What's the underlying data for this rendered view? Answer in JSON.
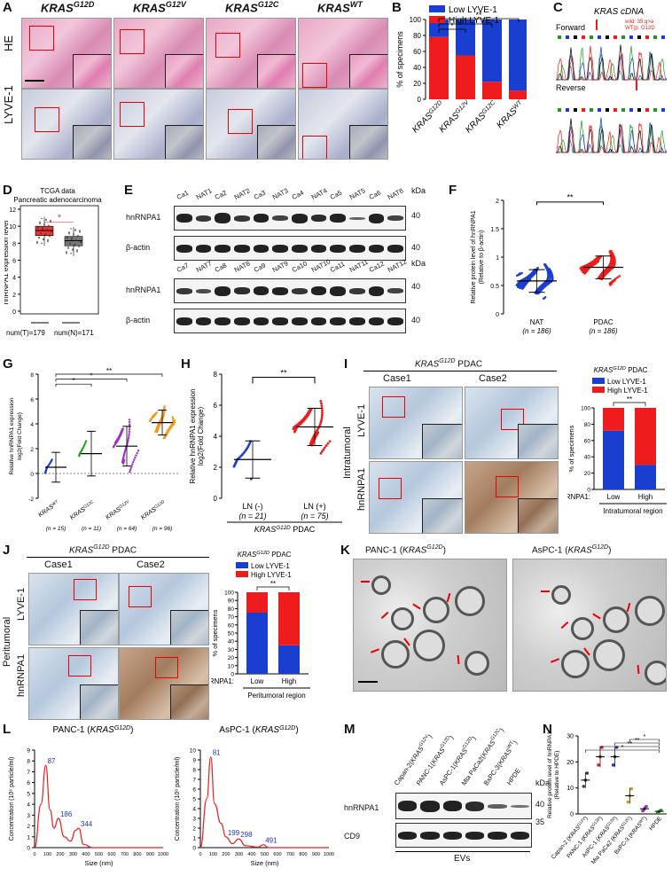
{
  "panels": {
    "A": {
      "letter": "A",
      "cols": [
        "KRAS",
        "KRAS",
        "KRAS",
        "KRAS"
      ],
      "sups": [
        "G12D",
        "G12V",
        "G12C",
        "WT"
      ],
      "rows": [
        "HE",
        "LYVE-1"
      ]
    },
    "B": {
      "letter": "B",
      "legend": [
        "Low LYVE-1",
        "High LYVE-1"
      ],
      "ylabel": "% of specimens",
      "sig": [
        "*",
        "*",
        "**",
        "**"
      ]
    },
    "C": {
      "letter": "C",
      "title": "KRAS cDNA",
      "forward": "Forward",
      "reverse": "Reverse",
      "note1": "wild: 35 g>a",
      "note2": "WT(p. G12D"
    },
    "D": {
      "letter": "D",
      "title1": "TCGA data",
      "title2": "Pancreatic adenocarcinoma",
      "ylabel": "hnRNPA1 expression level",
      "nT": "num(T)=179",
      "nN": "num(N)=171",
      "sig": "*"
    },
    "E": {
      "letter": "E",
      "lanes1": [
        "Ca1",
        "NAT1",
        "Ca2",
        "NAT2",
        "Ca3",
        "NAT3",
        "Ca4",
        "NAT4",
        "Ca5",
        "NAT5",
        "Ca6",
        "NAT6"
      ],
      "lanes2": [
        "Ca7",
        "NAT7",
        "Ca8",
        "NAT8",
        "Ca9",
        "NAT9",
        "Ca10",
        "NAT10",
        "Ca11",
        "NAT11",
        "Ca12",
        "NAT12"
      ],
      "row1": "hnRNPA1",
      "row2": "β-actin",
      "kda": "kDa",
      "m40": "40"
    },
    "F": {
      "letter": "F",
      "ylabel": "Relative protein level of hnRNPA1",
      "ylabel2": "(Relative to β-actin)",
      "groups": [
        "NAT",
        "PDAC"
      ],
      "n": [
        "(n = 186)",
        "(n = 186)"
      ],
      "sig": "**"
    },
    "G": {
      "letter": "G",
      "ylabel": "Relative hnRNPA1 expression",
      "ylabel2": "log2(Fold Change)",
      "groups": [
        "KRASWT",
        "KRASG12C",
        "KRASG12V",
        "KRASG12D"
      ],
      "n": [
        "(n = 15)",
        "(n = 11)",
        "(n = 64)",
        "(n = 96)"
      ],
      "sig": [
        "*",
        "*",
        "**"
      ]
    },
    "H": {
      "letter": "H",
      "ylabel": "Relative hnRNPA1 expression",
      "ylabel2": "log2(Fold Change)",
      "groups": [
        "LN (-)",
        "LN (+)"
      ],
      "n": [
        "(n = 21)",
        "(n = 75)"
      ],
      "footer": "KRASG12D PDAC",
      "sig": "**"
    },
    "I": {
      "letter": "I",
      "header": "KRASG12D PDAC",
      "case1": "Case1",
      "case2": "Case2",
      "region": "Intratumoral",
      "rows": [
        "LYVE-1",
        "hnRNPA1"
      ],
      "chartTitle": "KRASG12D PDAC",
      "legend": [
        "Low LYVE-1",
        "High LYVE-1"
      ],
      "ylabel": "% of specimens",
      "xlab": "hnRNPA1:",
      "cats": [
        "Low",
        "High"
      ],
      "regionLabel": "Intratumoral region",
      "sig": "**"
    },
    "J": {
      "letter": "J",
      "header": "KRASG12D PDAC",
      "case1": "Case1",
      "case2": "Case2",
      "region": "Peritumoral",
      "rows": [
        "LYVE-1",
        "hnRNPA1"
      ],
      "chartTitle": "KRASG12D PDAC",
      "legend": [
        "Low LYVE-1",
        "High LYVE-1"
      ],
      "ylabel": "% of specimens",
      "xlab": "hnRNPA1:",
      "cats": [
        "Low",
        "High"
      ],
      "regionLabel": "Peritumoral region",
      "sig": "**"
    },
    "K": {
      "letter": "K",
      "t1": "PANC-1 (KRASG12D)",
      "t2": "AsPC-1 (KRASG12D)"
    },
    "L": {
      "letter": "L",
      "t1": "PANC-1 (KRASG12D)",
      "t2": "AsPC-1 (KRASG12D)",
      "xlabel": "Size (nm)",
      "ylabel": "Concentration (10⁶ particle/ml)",
      "peaks1": [
        "87",
        "186",
        "344"
      ],
      "peaks2": [
        "81",
        "199",
        "298",
        "491"
      ]
    },
    "M": {
      "letter": "M",
      "lanes": [
        "Capan-2(KRASG12V)",
        "PANC-1(KRASG12D)",
        "AsPC-1(KRASG12D)",
        "Mia PaCa2(KRASG12C)",
        "BxPC-3(KRASWT)",
        "HPDE"
      ],
      "row1": "hnRNPA1",
      "row2": "CD9",
      "kda": "kDa",
      "m40": "40",
      "m35": "35",
      "footer": "EVs"
    },
    "N": {
      "letter": "N",
      "ylabel": "Relative protein level of hnRNPA1",
      "ylabel2": "(Relative to HPDE)",
      "cats": [
        "Capan-2 (KRASG12V)",
        "PANC-1 (KRASG12D)",
        "AsPC-1 (KRASG12D)",
        "Mia PaCa2 (KRASG12C)",
        "BxPC-3 (KRASWT)",
        "HPDE"
      ],
      "sig": [
        "*",
        "**",
        "**",
        "*"
      ]
    }
  },
  "chart_data": [
    {
      "id": "B",
      "type": "bar",
      "stacked": true,
      "categories": [
        "KRASG12D",
        "KRASG12V",
        "KRASG12C",
        "KRASWT"
      ],
      "series": [
        {
          "name": "High LYVE-1",
          "values": [
            78,
            55,
            22,
            11
          ]
        },
        {
          "name": "Low LYVE-1",
          "values": [
            22,
            45,
            78,
            89
          ]
        }
      ],
      "ylim": [
        0,
        100
      ],
      "yticks": [
        0,
        20,
        40,
        60,
        80,
        100
      ],
      "colors": {
        "High LYVE-1": "#ee1c1c",
        "Low LYVE-1": "#1a3fd0"
      }
    },
    {
      "id": "D",
      "type": "box",
      "categories": [
        "T",
        "N"
      ],
      "ylim": [
        0,
        12
      ],
      "yticks": [
        0,
        2,
        4,
        6,
        8,
        10,
        12
      ],
      "median": [
        9.5,
        8.3
      ]
    },
    {
      "id": "F",
      "type": "scatter",
      "categories": [
        "NAT",
        "PDAC"
      ],
      "mean": [
        0.58,
        0.82
      ],
      "sd": [
        0.2,
        0.2
      ],
      "ylim": [
        0,
        2.0
      ],
      "yticks": [
        0,
        0.5,
        1.0,
        1.5,
        2.0
      ]
    },
    {
      "id": "G",
      "type": "scatter",
      "categories": [
        "KRASWT",
        "KRASG12C",
        "KRASG12V",
        "KRASG12D"
      ],
      "mean": [
        0.5,
        1.6,
        2.2,
        4.1
      ],
      "sd": [
        1.2,
        1.8,
        1.6,
        1.0
      ],
      "ylim": [
        -2,
        8
      ],
      "yticks": [
        -2,
        0,
        2,
        4,
        6,
        8
      ]
    },
    {
      "id": "H",
      "type": "scatter",
      "categories": [
        "LN (-)",
        "LN (+)"
      ],
      "mean": [
        2.5,
        4.6
      ],
      "sd": [
        1.2,
        1.2
      ],
      "ylim": [
        0,
        8
      ],
      "yticks": [
        0,
        2,
        4,
        6,
        8
      ]
    },
    {
      "id": "I",
      "type": "bar",
      "stacked": true,
      "categories": [
        "Low",
        "High"
      ],
      "series": [
        {
          "name": "Low LYVE-1",
          "values": [
            72,
            30
          ]
        },
        {
          "name": "High LYVE-1",
          "values": [
            28,
            70
          ]
        }
      ],
      "ylim": [
        0,
        100
      ],
      "yticks": [
        0,
        20,
        40,
        60,
        80,
        100
      ]
    },
    {
      "id": "J",
      "type": "bar",
      "stacked": true,
      "categories": [
        "Low",
        "High"
      ],
      "series": [
        {
          "name": "Low LYVE-1",
          "values": [
            75,
            35
          ]
        },
        {
          "name": "High LYVE-1",
          "values": [
            25,
            65
          ]
        }
      ],
      "ylim": [
        0,
        100
      ],
      "yticks": [
        0,
        10,
        20,
        30,
        40,
        50,
        60,
        70,
        80,
        90,
        100
      ]
    },
    {
      "id": "L1",
      "type": "line",
      "x": [
        0,
        50,
        87,
        120,
        150,
        186,
        230,
        280,
        320,
        344,
        380,
        450,
        1000
      ],
      "y": [
        0,
        4,
        7.6,
        3.5,
        1.8,
        2.7,
        1.0,
        0.6,
        1.6,
        1.8,
        0.3,
        0,
        0
      ],
      "xlim": [
        0,
        1000
      ],
      "ylim": [
        0,
        9
      ],
      "yticks": [
        0,
        1,
        2,
        3,
        4,
        5,
        6,
        7,
        8,
        9
      ]
    },
    {
      "id": "L2",
      "type": "line",
      "x": [
        0,
        50,
        81,
        110,
        160,
        199,
        250,
        298,
        350,
        450,
        491,
        530,
        1000
      ],
      "y": [
        0,
        5,
        9.3,
        4.5,
        2.5,
        1.1,
        0.4,
        0.9,
        0.2,
        0.05,
        0.3,
        0,
        0
      ],
      "xlim": [
        0,
        1000
      ],
      "ylim": [
        0,
        10
      ],
      "yticks": [
        0,
        1,
        2,
        3,
        4,
        5,
        6,
        7,
        8,
        9,
        10
      ]
    },
    {
      "id": "N",
      "type": "scatter",
      "categories": [
        "Capan-2",
        "PANC-1",
        "AsPC-1",
        "Mia PaCa2",
        "BxPC-3",
        "HPDE"
      ],
      "mean": [
        13,
        22,
        22,
        7,
        2,
        1
      ],
      "sd": [
        3,
        4,
        4,
        3,
        1,
        0.5
      ],
      "ylim": [
        0,
        30
      ],
      "yticks": [
        0,
        10,
        20,
        30
      ]
    }
  ]
}
